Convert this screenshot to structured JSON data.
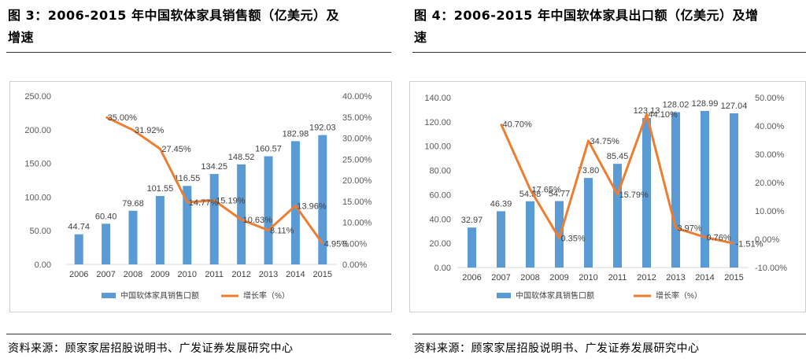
{
  "figures": [
    {
      "title_line1": "图 3：2006-2015 年中国软体家具销售额（亿美元）及",
      "title_line2": "增速",
      "source": "资料来源：顾家家居招股说明书、广发证券发展研究中心",
      "colors": {
        "bar": "#5b9bd5",
        "line": "#ed7d31"
      },
      "chart_data": {
        "type": "bar",
        "categories": [
          "2006",
          "2007",
          "2008",
          "2009",
          "2010",
          "2011",
          "2012",
          "2013",
          "2014",
          "2015"
        ],
        "series": [
          {
            "name": "中国软体家具销售口额",
            "type": "bar",
            "axis": "left",
            "values": [
              44.74,
              60.4,
              79.68,
              101.55,
              116.55,
              134.25,
              148.52,
              160.57,
              182.98,
              192.03
            ],
            "labels": [
              "44.74",
              "60.40",
              "79.68",
              "101.55",
              "116.55",
              "134.25",
              "148.52",
              "160.57",
              "182.98",
              "192.03"
            ]
          },
          {
            "name": "增长率（%）",
            "type": "line",
            "axis": "right",
            "values": [
              null,
              35.0,
              31.92,
              27.45,
              14.77,
              15.19,
              10.63,
              8.11,
              13.96,
              4.95
            ],
            "labels": [
              "",
              "35.00%",
              "31.92%",
              "27.45%",
              "14.77%",
              "15.19%",
              "10.63%",
              "8.11%",
              "13.96%",
              "4.95%"
            ]
          }
        ],
        "y_left": {
          "min": 0,
          "max": 250,
          "ticks": [
            "0.00",
            "50.00",
            "100.00",
            "150.00",
            "200.00",
            "250.00"
          ]
        },
        "y_right": {
          "min": 0,
          "max": 40,
          "ticks": [
            "0.00%",
            "5.00%",
            "10.00%",
            "15.00%",
            "20.00%",
            "25.00%",
            "30.00%",
            "35.00%",
            "40.00%"
          ]
        },
        "legend_position": "bottom",
        "grid": false
      }
    },
    {
      "title_line1": "图 4：2006-2015 年中国软体家具出口额（亿美元）及增",
      "title_line2": "速",
      "source": "资料来源：顾家家居招股说明书、广发证券发展研究中心",
      "colors": {
        "bar": "#5b9bd5",
        "line": "#ed7d31"
      },
      "chart_data": {
        "type": "bar",
        "categories": [
          "2006",
          "2007",
          "2008",
          "2009",
          "2010",
          "2011",
          "2012",
          "2013",
          "2014",
          "2015"
        ],
        "series": [
          {
            "name": "中国软体家具销售口额",
            "type": "bar",
            "axis": "left",
            "values": [
              32.97,
              46.39,
              54.58,
              54.77,
              73.8,
              85.45,
              123.13,
              128.02,
              128.99,
              127.04
            ],
            "labels": [
              "32.97",
              "46.39",
              "54.58",
              "54.77",
              "73.80",
              "85.45",
              "123.13",
              "128.02",
              "128.99",
              "127.04"
            ]
          },
          {
            "name": "增长率（%）",
            "type": "line",
            "axis": "right",
            "values": [
              null,
              40.7,
              17.65,
              0.35,
              34.75,
              15.79,
              44.1,
              3.97,
              0.76,
              -1.51
            ],
            "labels": [
              "",
              "40.70%",
              "17.65%",
              "0.35%",
              "34.75%",
              "15.79%",
              "44.10%",
              "3.97%",
              "0.76%",
              "-1.51%"
            ]
          }
        ],
        "y_left": {
          "min": 0,
          "max": 140,
          "ticks": [
            "0.00",
            "20.00",
            "40.00",
            "60.00",
            "80.00",
            "100.00",
            "120.00",
            "140.00"
          ]
        },
        "y_right": {
          "min": -10,
          "max": 50,
          "ticks": [
            "-10.00%",
            "0.00%",
            "10.00%",
            "20.00%",
            "30.00%",
            "40.00%",
            "50.00%"
          ]
        },
        "legend_position": "bottom",
        "grid": false
      }
    }
  ]
}
